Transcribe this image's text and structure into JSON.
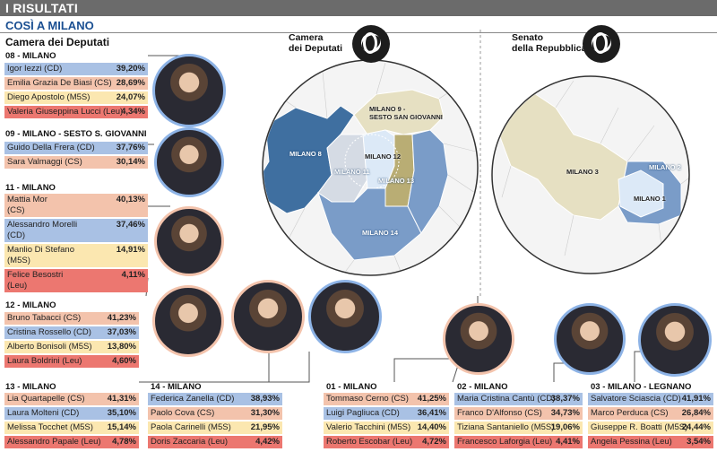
{
  "header": {
    "title": "I RISULTATI",
    "subtitle": "COSÌ A MILANO"
  },
  "camera_section_title": "Camera dei Deputati",
  "colors": {
    "CD": "#a9c1e4",
    "CS": "#f3c3ac",
    "M5S": "#fbe7b0",
    "Leu": "#ec7770",
    "accent": "#1a4f92"
  },
  "groups": [
    {
      "id": "g08",
      "title": "08 - MILANO",
      "rows": [
        {
          "name": "Igor Iezzi (CD)",
          "pct": "39,20%",
          "party": "CD"
        },
        {
          "name": "Emilia Grazia De Biasi (CS)",
          "pct": "28,69%",
          "party": "CS"
        },
        {
          "name": "Diego Apostolo (M5S)",
          "pct": "24,07%",
          "party": "M5S"
        },
        {
          "name": "Valeria Giuseppina Lucci (Leu)",
          "pct": "4,34%",
          "party": "Leu"
        }
      ]
    },
    {
      "id": "g09",
      "title": "09 - MILANO - SESTO S. GIOVANNI",
      "rows": [
        {
          "name": "Guido Della Frera (CD)",
          "pct": "37,76%",
          "party": "CD"
        },
        {
          "name": "Sara Valmaggi (CS)",
          "pct": "30,14%",
          "party": "CS"
        }
      ]
    },
    {
      "id": "g11",
      "title": "11 - MILANO",
      "rows": [
        {
          "name": "Mattia Mor\n(CS)",
          "pct": "40,13%",
          "party": "CS"
        },
        {
          "name": "Alessandro Morelli\n(CD)",
          "pct": "37,46%",
          "party": "CD"
        },
        {
          "name": "Manlio Di Stefano\n(M5S)",
          "pct": "14,91%",
          "party": "M5S"
        },
        {
          "name": "Felice Besostri\n(Leu)",
          "pct": "4,11%",
          "party": "Leu"
        }
      ]
    },
    {
      "id": "g12",
      "title": "12 - MILANO",
      "rows": [
        {
          "name": "Bruno Tabacci (CS)",
          "pct": "41,23%",
          "party": "CS"
        },
        {
          "name": "Cristina Rossello (CD)",
          "pct": "37,03%",
          "party": "CD"
        },
        {
          "name": "Alberto Bonisoli (M5S)",
          "pct": "13,80%",
          "party": "M5S"
        },
        {
          "name": "Laura Boldrini (Leu)",
          "pct": "4,60%",
          "party": "Leu"
        }
      ]
    },
    {
      "id": "g13",
      "title": "13 - MILANO",
      "rows": [
        {
          "name": "Lia Quartapelle (CS)",
          "pct": "41,31%",
          "party": "CS"
        },
        {
          "name": "Laura Molteni (CD)",
          "pct": "35,10%",
          "party": "CD"
        },
        {
          "name": "Melissa Tocchet (M5S)",
          "pct": "15,14%",
          "party": "M5S"
        },
        {
          "name": "Alessandro Papale (Leu)",
          "pct": "4,78%",
          "party": "Leu"
        }
      ]
    },
    {
      "id": "g14",
      "title": "14 - MILANO",
      "rows": [
        {
          "name": "Federica Zanella (CD)",
          "pct": "38,93%",
          "party": "CD"
        },
        {
          "name": "Paolo Cova (CS)",
          "pct": "31,30%",
          "party": "CS"
        },
        {
          "name": "Paola Carinelli (M5S)",
          "pct": "21,95%",
          "party": "M5S"
        },
        {
          "name": "Doris Zaccaria (Leu)",
          "pct": "4,42%",
          "party": "Leu"
        }
      ]
    },
    {
      "id": "g01",
      "title": "01 - MILANO",
      "rows": [
        {
          "name": "Tommaso Cerno (CS)",
          "pct": "41,25%",
          "party": "CS"
        },
        {
          "name": "Luigi Pagliuca (CD)",
          "pct": "36,41%",
          "party": "CD"
        },
        {
          "name": "Valerio Tacchini (M5S)",
          "pct": "14,40%",
          "party": "M5S"
        },
        {
          "name": "Roberto Escobar (Leu)",
          "pct": "4,72%",
          "party": "Leu"
        }
      ]
    },
    {
      "id": "g02",
      "title": "02 - MILANO",
      "rows": [
        {
          "name": "Maria Cristina Cantù (CD)",
          "pct": "38,37%",
          "party": "CD"
        },
        {
          "name": "Franco D'Alfonso (CS)",
          "pct": "34,73%",
          "party": "CS"
        },
        {
          "name": "Tiziana Santaniello (M5S)",
          "pct": "19,06%",
          "party": "M5S"
        },
        {
          "name": "Francesco Laforgia (Leu)",
          "pct": "4,41%",
          "party": "Leu"
        }
      ]
    },
    {
      "id": "g03",
      "title": "03 - MILANO - LEGNANO",
      "rows": [
        {
          "name": "Salvatore Sciascia (CD)",
          "pct": "41,91%",
          "party": "CD"
        },
        {
          "name": "Marco Perduca (CS)",
          "pct": "26,84%",
          "party": "CS"
        },
        {
          "name": "Giuseppe R. Boatti (M5S)",
          "pct": "24,44%",
          "party": "M5S"
        },
        {
          "name": "Angela Pessina (Leu)",
          "pct": "3,54%",
          "party": "Leu"
        }
      ]
    }
  ],
  "maps": {
    "camera": {
      "title": "Camera\ndei Deputati",
      "labels": [
        "MILANO 8",
        "MILANO 9 -\nSESTO SAN GIOVANNI",
        "MILANO 11",
        "MILANO 12",
        "MILANO 13",
        "MILANO 14"
      ]
    },
    "senato": {
      "title": "Senato\ndella Repubblica",
      "labels": [
        "MILANO 3",
        "MILANO 2",
        "MILANO 1"
      ]
    }
  }
}
